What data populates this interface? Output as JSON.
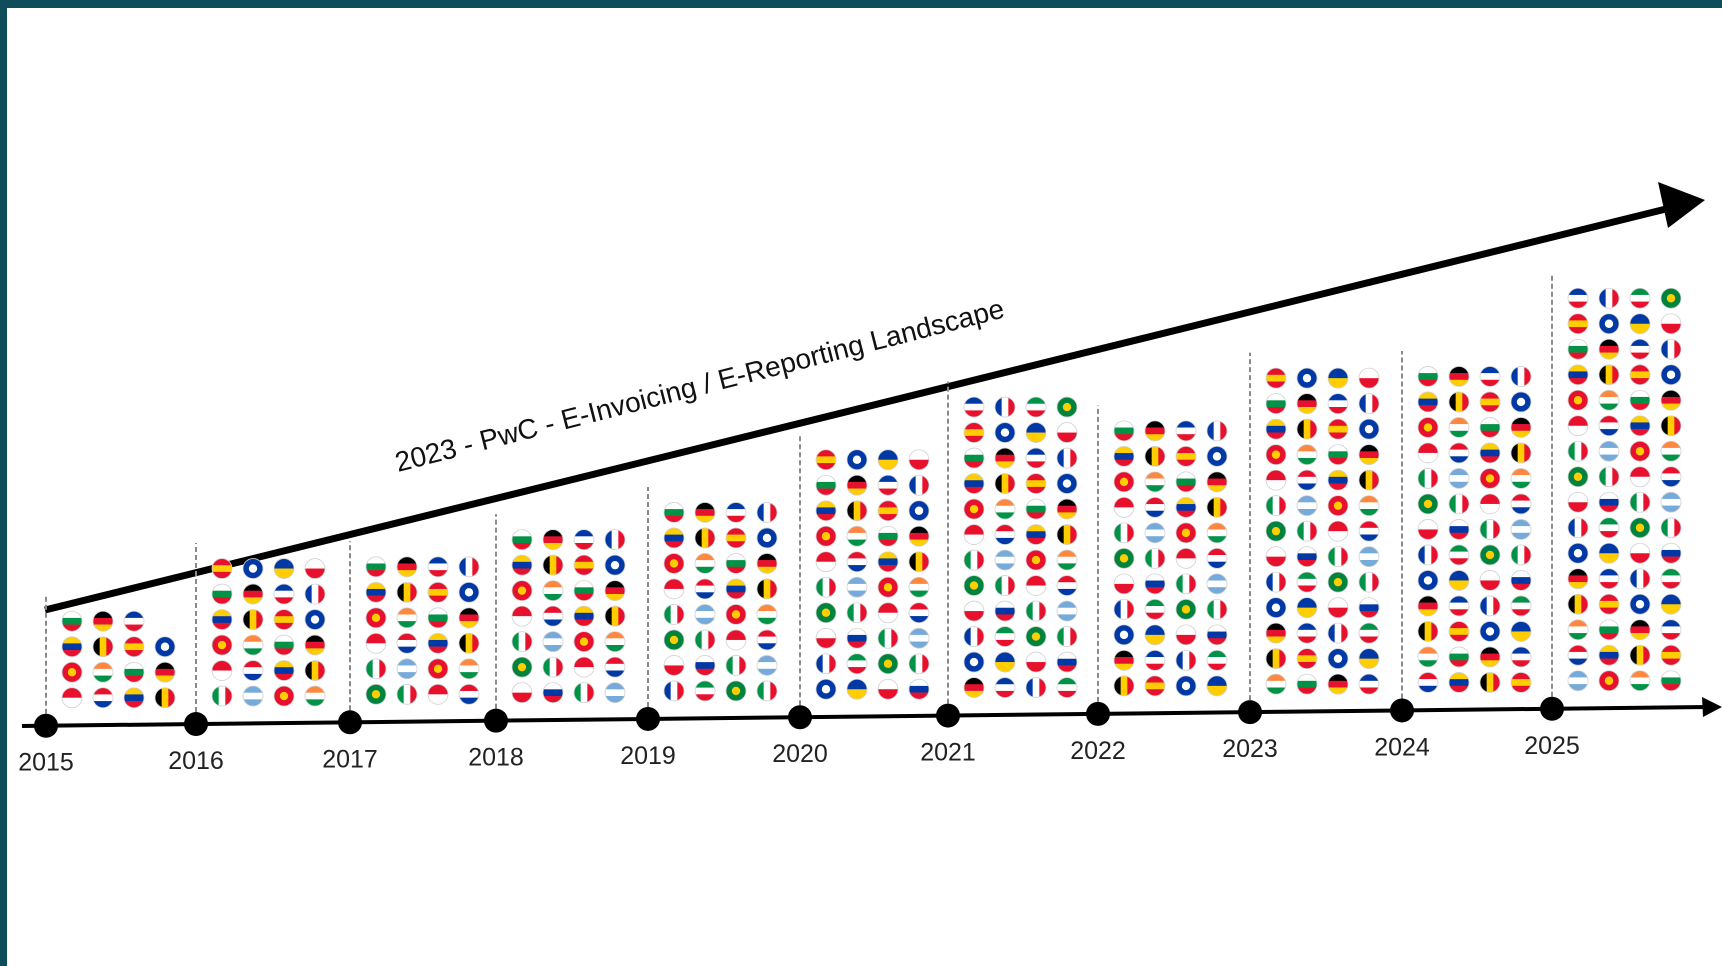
{
  "title": "2023 - PwC - E-Invoicing / E-Reporting Landscape",
  "years": [
    {
      "label": "2015",
      "count": 15
    },
    {
      "label": "2016",
      "count": 24
    },
    {
      "label": "2017",
      "count": 24
    },
    {
      "label": "2018",
      "count": 28
    },
    {
      "label": "2019",
      "count": 32
    },
    {
      "label": "2020",
      "count": 40
    },
    {
      "label": "2021",
      "count": 48
    },
    {
      "label": "2022",
      "count": 44
    },
    {
      "label": "2023",
      "count": 52
    },
    {
      "label": "2024",
      "count": 52
    },
    {
      "label": "2025",
      "count": 64
    }
  ],
  "colors": {
    "frame": "#0f4c5c",
    "axis": "#000000",
    "dot": "#000000",
    "divider": "#8a8a8a",
    "flag_palette": [
      "#e8112d",
      "#ffffff",
      "#0039a6",
      "#009246",
      "#ffcd00",
      "#000000",
      "#ff883e",
      "#75aadb",
      "#00843d"
    ]
  },
  "icons": {
    "flag": "country-flag-icon",
    "arrow": "arrow-head-icon",
    "milestone": "milestone-dot-icon"
  }
}
